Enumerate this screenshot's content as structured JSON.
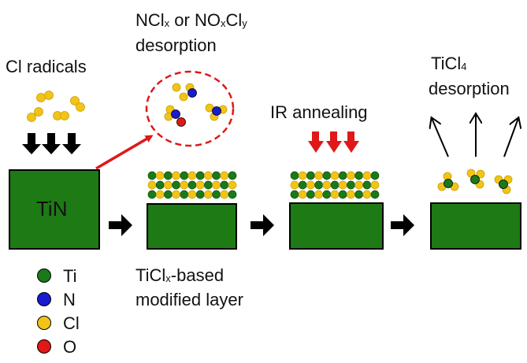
{
  "labels": {
    "cl_radicals": "Cl radicals",
    "tin": "TiN",
    "desorption1_line1_a": "NCl",
    "desorption1_line1_x": "x",
    "desorption1_line1_b": " or NO",
    "desorption1_line1_x2": "x",
    "desorption1_line1_c": "Cl",
    "desorption1_line1_y": "y",
    "desorption1_line2": "desorption",
    "modified_line1_a": "TiCl",
    "modified_line1_x": "x",
    "modified_line1_b": "-based",
    "modified_line2": "modified layer",
    "ir_annealing": "IR annealing",
    "ticl4_a": "TiCl",
    "ticl4_sub": "4",
    "ticl4_line2": "desorption"
  },
  "legend": [
    {
      "symbol": "Ti",
      "color": "#1a7a1a"
    },
    {
      "symbol": "N",
      "color": "#1a1ad0"
    },
    {
      "symbol": "Cl",
      "color": "#f2c417"
    },
    {
      "symbol": "O",
      "color": "#e01818"
    }
  ],
  "colors": {
    "substrate": "#1e7a14",
    "cl": "#f2c417",
    "ti": "#1a7a1a",
    "n": "#1a1ad0",
    "o": "#e01818",
    "red_arrow": "#e01818",
    "black_arrow": "#000000"
  }
}
